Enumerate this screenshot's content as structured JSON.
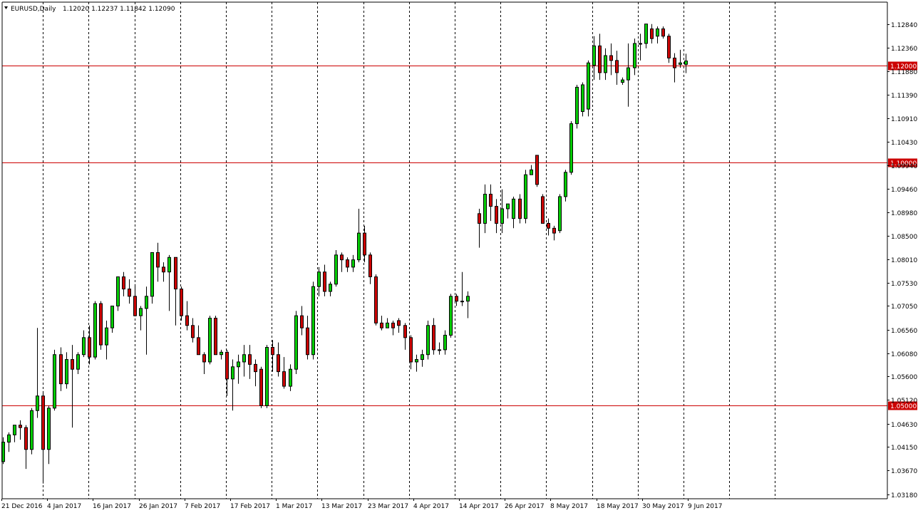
{
  "header": {
    "symbol": "EURUSD,Daily",
    "ohlc": "1.12020 1.12237 1.11842 1.12090"
  },
  "colors": {
    "background": "#ffffff",
    "up": "#00cc00",
    "down": "#cc0000",
    "wick": "#000000",
    "hline": "#cc0000",
    "vgrid": "#000000"
  },
  "chart_data": {
    "type": "candlestick",
    "symbol": "EURUSD",
    "timeframe": "Daily",
    "ylim": [
      1.0313,
      1.1308
    ],
    "y_ticks": [
      "1.12840",
      "1.12360",
      "1.11880",
      "1.11390",
      "1.10910",
      "1.10430",
      "1.09940",
      "1.09460",
      "1.08980",
      "1.08500",
      "1.08010",
      "1.07530",
      "1.07050",
      "1.06560",
      "1.06080",
      "1.05600",
      "1.05120",
      "1.04630",
      "1.04150",
      "1.03670",
      "1.03180"
    ],
    "x_labels": [
      "21 Dec 2016",
      "4 Jan 2017",
      "16 Jan 2017",
      "26 Jan 2017",
      "7 Feb 2017",
      "17 Feb 2017",
      "1 Mar 2017",
      "13 Mar 2017",
      "23 Mar 2017",
      "4 Apr 2017",
      "14 Apr 2017",
      "26 Apr 2017",
      "8 May 2017",
      "18 May 2017",
      "30 May 2017",
      "9 Jun 2017"
    ],
    "horizontal_lines": [
      {
        "value": 1.12,
        "label": "1.12000"
      },
      {
        "value": 1.1,
        "label": "1.10000"
      },
      {
        "value": 1.05,
        "label": "1.05000"
      }
    ],
    "candles": [
      [
        1.0385,
        1.0435,
        1.038,
        1.0425
      ],
      [
        1.0425,
        1.0445,
        1.0405,
        1.044
      ],
      [
        1.044,
        1.046,
        1.0425,
        1.046
      ],
      [
        1.046,
        1.047,
        1.043,
        1.0455
      ],
      [
        1.0455,
        1.046,
        1.037,
        1.041
      ],
      [
        1.041,
        1.0495,
        1.04,
        1.049
      ],
      [
        1.049,
        1.066,
        1.0475,
        1.052
      ],
      [
        1.052,
        1.053,
        1.034,
        1.041
      ],
      [
        1.041,
        1.05,
        1.038,
        1.0495
      ],
      [
        1.0495,
        1.0615,
        1.049,
        1.0605
      ],
      [
        1.0605,
        1.062,
        1.053,
        1.0545
      ],
      [
        1.0545,
        1.061,
        1.0535,
        1.0595
      ],
      [
        1.0595,
        1.0625,
        1.0455,
        1.0575
      ],
      [
        1.0575,
        1.061,
        1.0565,
        1.0605
      ],
      [
        1.0605,
        1.0655,
        1.06,
        1.064
      ],
      [
        1.064,
        1.0665,
        1.0585,
        1.06
      ],
      [
        1.06,
        1.0715,
        1.0595,
        1.071
      ],
      [
        1.071,
        1.0715,
        1.0615,
        1.0625
      ],
      [
        1.0625,
        1.0675,
        1.0595,
        1.066
      ],
      [
        1.066,
        1.0705,
        1.065,
        1.0705
      ],
      [
        1.0705,
        1.0765,
        1.0695,
        1.0765
      ],
      [
        1.0765,
        1.0775,
        1.0725,
        1.074
      ],
      [
        1.074,
        1.076,
        1.071,
        1.0725
      ],
      [
        1.0725,
        1.075,
        1.0695,
        1.0685
      ],
      [
        1.0685,
        1.0705,
        1.0655,
        1.07
      ],
      [
        1.07,
        1.0745,
        1.0605,
        1.0725
      ],
      [
        1.0725,
        1.0815,
        1.071,
        1.0815
      ],
      [
        1.0815,
        1.0835,
        1.0755,
        1.0785
      ],
      [
        1.0785,
        1.0795,
        1.0755,
        1.0775
      ],
      [
        1.0775,
        1.081,
        1.0695,
        1.0805
      ],
      [
        1.0805,
        1.0805,
        1.0665,
        1.074
      ],
      [
        1.074,
        1.0745,
        1.0675,
        1.0685
      ],
      [
        1.0685,
        1.0715,
        1.0655,
        1.0665
      ],
      [
        1.0665,
        1.068,
        1.063,
        1.064
      ],
      [
        1.064,
        1.0665,
        1.0615,
        1.0605
      ],
      [
        1.0605,
        1.061,
        1.0565,
        1.059
      ],
      [
        1.059,
        1.0685,
        1.0585,
        1.068
      ],
      [
        1.068,
        1.0685,
        1.0615,
        1.0605
      ],
      [
        1.0605,
        1.0615,
        1.0595,
        1.061
      ],
      [
        1.061,
        1.0615,
        1.052,
        1.0555
      ],
      [
        1.0555,
        1.0595,
        1.049,
        1.058
      ],
      [
        1.058,
        1.0605,
        1.0545,
        1.059
      ],
      [
        1.059,
        1.0625,
        1.056,
        1.0605
      ],
      [
        1.0605,
        1.0625,
        1.0555,
        1.0585
      ],
      [
        1.0585,
        1.0595,
        1.054,
        1.057
      ],
      [
        1.0575,
        1.058,
        1.0495,
        1.05
      ],
      [
        1.05,
        1.0625,
        1.0495,
        1.062
      ],
      [
        1.062,
        1.0635,
        1.057,
        1.0605
      ],
      [
        1.0605,
        1.063,
        1.056,
        1.057
      ],
      [
        1.057,
        1.06,
        1.0535,
        1.054
      ],
      [
        1.054,
        1.0585,
        1.053,
        1.0575
      ],
      [
        1.0575,
        1.0695,
        1.0565,
        1.0685
      ],
      [
        1.0685,
        1.0705,
        1.0645,
        1.066
      ],
      [
        1.066,
        1.0685,
        1.0595,
        1.0605
      ],
      [
        1.0605,
        1.0755,
        1.0595,
        1.0745
      ],
      [
        1.0745,
        1.0785,
        1.0725,
        1.0775
      ],
      [
        1.0775,
        1.079,
        1.0725,
        1.0735
      ],
      [
        1.0735,
        1.0755,
        1.0725,
        1.075
      ],
      [
        1.075,
        1.082,
        1.0745,
        1.081
      ],
      [
        1.081,
        1.0815,
        1.0775,
        1.08
      ],
      [
        1.08,
        1.0805,
        1.0775,
        1.0785
      ],
      [
        1.0785,
        1.081,
        1.0775,
        1.08
      ],
      [
        1.08,
        1.0905,
        1.0795,
        1.0855
      ],
      [
        1.0855,
        1.087,
        1.0795,
        1.081
      ],
      [
        1.081,
        1.0815,
        1.075,
        1.0765
      ],
      [
        1.0765,
        1.077,
        1.0665,
        1.067
      ],
      [
        1.067,
        1.0685,
        1.0655,
        1.066
      ],
      [
        1.066,
        1.068,
        1.066,
        1.067
      ],
      [
        1.067,
        1.0675,
        1.0645,
        1.066
      ],
      [
        1.0675,
        1.068,
        1.065,
        1.0665
      ],
      [
        1.0665,
        1.067,
        1.0615,
        1.064
      ],
      [
        1.064,
        1.0645,
        1.0575,
        1.059
      ],
      [
        1.059,
        1.0605,
        1.057,
        1.0595
      ],
      [
        1.0595,
        1.0615,
        1.058,
        1.0605
      ],
      [
        1.0605,
        1.0675,
        1.0595,
        1.0665
      ],
      [
        1.0665,
        1.068,
        1.0605,
        1.0615
      ],
      [
        1.0615,
        1.063,
        1.0605,
        1.0615
      ],
      [
        1.0615,
        1.0655,
        1.0605,
        1.0645
      ],
      [
        1.0645,
        1.073,
        1.064,
        1.0725
      ],
      [
        1.0725,
        1.073,
        1.0705,
        1.0715
      ],
      [
        1.0715,
        1.0775,
        1.0705,
        1.0715
      ],
      [
        1.0715,
        1.0735,
        1.068,
        1.0725
      ],
      null,
      [
        1.0895,
        1.0905,
        1.0825,
        1.0875
      ],
      [
        1.0875,
        1.0955,
        1.0855,
        1.0935
      ],
      [
        1.0935,
        1.0955,
        1.088,
        1.091
      ],
      [
        1.091,
        1.0925,
        1.0855,
        1.0875
      ],
      [
        1.0875,
        1.0945,
        1.0855,
        1.0905
      ],
      [
        1.0905,
        1.0915,
        1.0885,
        1.0915
      ],
      [
        1.0885,
        1.093,
        1.0865,
        1.0925
      ],
      [
        1.0925,
        1.0935,
        1.0875,
        1.0885
      ],
      [
        1.0885,
        1.0985,
        1.0875,
        1.0975
      ],
      [
        1.0975,
        1.0995,
        1.0975,
        1.0985
      ],
      [
        1.1015,
        1.1015,
        1.095,
        1.0955
      ],
      [
        1.093,
        1.0935,
        1.0875,
        1.0875
      ],
      [
        1.0875,
        1.0885,
        1.085,
        1.0865
      ],
      [
        1.0865,
        1.087,
        1.084,
        1.0855
      ],
      [
        1.086,
        1.0935,
        1.0855,
        1.093
      ],
      [
        1.093,
        1.0985,
        1.092,
        1.098
      ],
      [
        1.098,
        1.1085,
        1.0975,
        1.108
      ],
      [
        1.108,
        1.116,
        1.107,
        1.1155
      ],
      [
        1.1105,
        1.1165,
        1.1095,
        1.116
      ],
      [
        1.111,
        1.121,
        1.1095,
        1.1205
      ],
      [
        1.12,
        1.126,
        1.117,
        1.124
      ],
      [
        1.124,
        1.1265,
        1.117,
        1.1185
      ],
      [
        1.1185,
        1.1235,
        1.117,
        1.122
      ],
      [
        1.122,
        1.1245,
        1.118,
        1.121
      ],
      [
        1.121,
        1.123,
        1.116,
        1.1185
      ],
      [
        1.1165,
        1.1175,
        1.116,
        1.117
      ],
      [
        1.117,
        1.1245,
        1.1115,
        1.1195
      ],
      [
        1.1195,
        1.1255,
        1.118,
        1.1245
      ],
      [
        1.1245,
        1.1265,
        1.121,
        1.1245
      ],
      [
        1.1245,
        1.1285,
        1.1235,
        1.1285
      ],
      [
        1.1275,
        1.1285,
        1.1245,
        1.1255
      ],
      [
        1.126,
        1.128,
        1.1245,
        1.1275
      ],
      [
        1.1275,
        1.128,
        1.1255,
        1.126
      ],
      [
        1.126,
        1.1265,
        1.1205,
        1.1215
      ],
      [
        1.1215,
        1.1225,
        1.1165,
        1.1195
      ],
      [
        1.1202,
        1.1232,
        1.1195,
        1.1205
      ],
      [
        1.1202,
        1.1224,
        1.1184,
        1.1209
      ]
    ]
  }
}
